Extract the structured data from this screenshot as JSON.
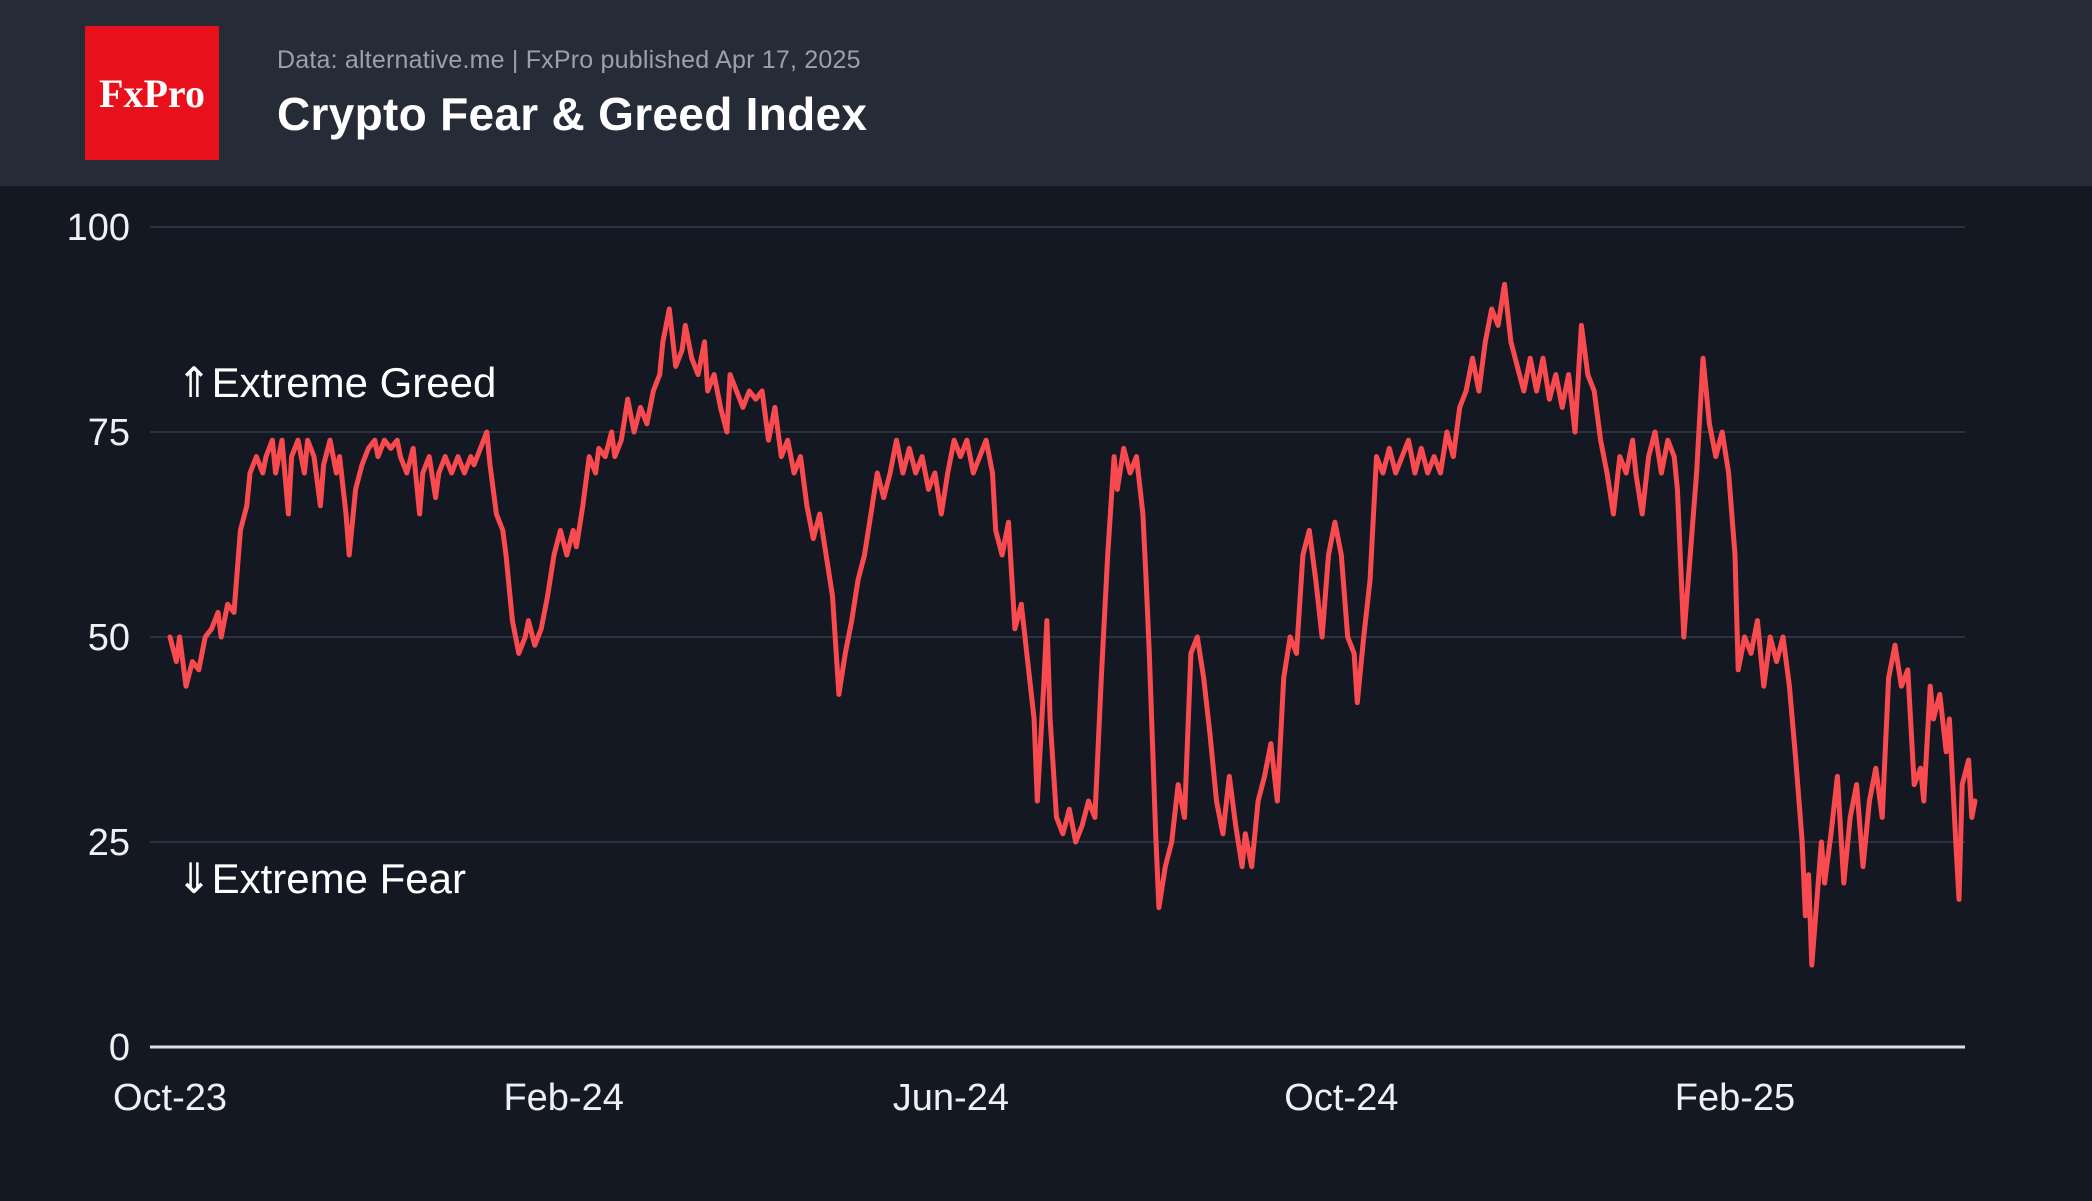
{
  "header": {
    "logo_text": "FxPro",
    "caption": "Data: alternative.me | FxPro published Apr 17, 2025",
    "title": "Crypto Fear & Greed Index"
  },
  "colors": {
    "page_bg": "#141823",
    "header_bg": "#262b38",
    "logo_bg": "#e8101b",
    "line": "#f94b4f",
    "grid": "#343a46",
    "axis": "#dcdee2",
    "tick_text": "#eef0f4",
    "annotation_text": "#ffffff",
    "caption_text": "#9aa1ad"
  },
  "chart_data": {
    "type": "line",
    "title": "Crypto Fear & Greed Index",
    "xlabel": "",
    "ylabel": "",
    "ylim": [
      0,
      100
    ],
    "y_ticks": [
      0,
      25,
      50,
      75,
      100
    ],
    "grid": "horizontal",
    "legend_position": "none",
    "total_days": 564,
    "x_ticks": [
      {
        "label": "Oct-23",
        "day": 0
      },
      {
        "label": "Feb-24",
        "day": 123
      },
      {
        "label": "Jun-24",
        "day": 244
      },
      {
        "label": "Oct-24",
        "day": 366
      },
      {
        "label": "Feb-25",
        "day": 489
      }
    ],
    "annotations": [
      {
        "id": "extreme-greed",
        "arrow": "⇑",
        "text": "Extreme Greed",
        "day": 2,
        "value": 81
      },
      {
        "id": "extreme-fear",
        "arrow": "⇓",
        "text": "Extreme Fear",
        "day": 2,
        "value": 20.5
      }
    ],
    "series": [
      {
        "name": "Crypto Fear & Greed Index (daily)",
        "points": [
          [
            0,
            50
          ],
          [
            2,
            47
          ],
          [
            3,
            50
          ],
          [
            5,
            44
          ],
          [
            7,
            47
          ],
          [
            9,
            46
          ],
          [
            11,
            50
          ],
          [
            13,
            51
          ],
          [
            15,
            53
          ],
          [
            16,
            50
          ],
          [
            18,
            54
          ],
          [
            20,
            53
          ],
          [
            22,
            63
          ],
          [
            24,
            66
          ],
          [
            25,
            70
          ],
          [
            27,
            72
          ],
          [
            29,
            70
          ],
          [
            30,
            72
          ],
          [
            32,
            74
          ],
          [
            33,
            70
          ],
          [
            35,
            74
          ],
          [
            37,
            65
          ],
          [
            38,
            72
          ],
          [
            40,
            74
          ],
          [
            42,
            70
          ],
          [
            43,
            74
          ],
          [
            45,
            72
          ],
          [
            47,
            66
          ],
          [
            48,
            71
          ],
          [
            50,
            74
          ],
          [
            52,
            70
          ],
          [
            53,
            72
          ],
          [
            55,
            65
          ],
          [
            56,
            60
          ],
          [
            58,
            68
          ],
          [
            60,
            71
          ],
          [
            62,
            73
          ],
          [
            64,
            74
          ],
          [
            65,
            72
          ],
          [
            67,
            74
          ],
          [
            69,
            73
          ],
          [
            71,
            74
          ],
          [
            72,
            72
          ],
          [
            74,
            70
          ],
          [
            76,
            73
          ],
          [
            78,
            65
          ],
          [
            79,
            70
          ],
          [
            81,
            72
          ],
          [
            83,
            67
          ],
          [
            84,
            70
          ],
          [
            86,
            72
          ],
          [
            88,
            70
          ],
          [
            90,
            72
          ],
          [
            92,
            70
          ],
          [
            94,
            72
          ],
          [
            95,
            71
          ],
          [
            97,
            73
          ],
          [
            99,
            75
          ],
          [
            100,
            71
          ],
          [
            102,
            65
          ],
          [
            104,
            63
          ],
          [
            105,
            60
          ],
          [
            107,
            52
          ],
          [
            109,
            48
          ],
          [
            111,
            50
          ],
          [
            112,
            52
          ],
          [
            114,
            49
          ],
          [
            116,
            51
          ],
          [
            118,
            55
          ],
          [
            120,
            60
          ],
          [
            122,
            63
          ],
          [
            124,
            60
          ],
          [
            126,
            63
          ],
          [
            127,
            61
          ],
          [
            129,
            66
          ],
          [
            131,
            72
          ],
          [
            133,
            70
          ],
          [
            134,
            73
          ],
          [
            136,
            72
          ],
          [
            138,
            75
          ],
          [
            139,
            72
          ],
          [
            141,
            74
          ],
          [
            143,
            79
          ],
          [
            145,
            75
          ],
          [
            147,
            78
          ],
          [
            149,
            76
          ],
          [
            151,
            80
          ],
          [
            153,
            82
          ],
          [
            154,
            86
          ],
          [
            156,
            90
          ],
          [
            158,
            83
          ],
          [
            160,
            85
          ],
          [
            161,
            88
          ],
          [
            163,
            84
          ],
          [
            165,
            82
          ],
          [
            167,
            86
          ],
          [
            168,
            80
          ],
          [
            170,
            82
          ],
          [
            172,
            78
          ],
          [
            174,
            75
          ],
          [
            175,
            82
          ],
          [
            177,
            80
          ],
          [
            179,
            78
          ],
          [
            181,
            80
          ],
          [
            183,
            79
          ],
          [
            185,
            80
          ],
          [
            187,
            74
          ],
          [
            189,
            78
          ],
          [
            191,
            72
          ],
          [
            193,
            74
          ],
          [
            195,
            70
          ],
          [
            197,
            72
          ],
          [
            199,
            66
          ],
          [
            201,
            62
          ],
          [
            203,
            65
          ],
          [
            205,
            60
          ],
          [
            207,
            55
          ],
          [
            209,
            43
          ],
          [
            211,
            48
          ],
          [
            213,
            52
          ],
          [
            215,
            57
          ],
          [
            217,
            60
          ],
          [
            219,
            65
          ],
          [
            221,
            70
          ],
          [
            223,
            67
          ],
          [
            225,
            70
          ],
          [
            227,
            74
          ],
          [
            229,
            70
          ],
          [
            231,
            73
          ],
          [
            233,
            70
          ],
          [
            235,
            72
          ],
          [
            237,
            68
          ],
          [
            239,
            70
          ],
          [
            241,
            65
          ],
          [
            243,
            70
          ],
          [
            245,
            74
          ],
          [
            247,
            72
          ],
          [
            249,
            74
          ],
          [
            251,
            70
          ],
          [
            253,
            72
          ],
          [
            255,
            74
          ],
          [
            257,
            70
          ],
          [
            258,
            63
          ],
          [
            260,
            60
          ],
          [
            262,
            64
          ],
          [
            264,
            51
          ],
          [
            266,
            54
          ],
          [
            268,
            47
          ],
          [
            270,
            40
          ],
          [
            271,
            30
          ],
          [
            273,
            44
          ],
          [
            274,
            52
          ],
          [
            275,
            40
          ],
          [
            277,
            28
          ],
          [
            279,
            26
          ],
          [
            281,
            29
          ],
          [
            283,
            25
          ],
          [
            285,
            27
          ],
          [
            287,
            30
          ],
          [
            289,
            28
          ],
          [
            291,
            45
          ],
          [
            293,
            60
          ],
          [
            295,
            72
          ],
          [
            296,
            68
          ],
          [
            298,
            73
          ],
          [
            300,
            70
          ],
          [
            302,
            72
          ],
          [
            304,
            65
          ],
          [
            305,
            57
          ],
          [
            306,
            48
          ],
          [
            307,
            37
          ],
          [
            308,
            26
          ],
          [
            309,
            17
          ],
          [
            311,
            22
          ],
          [
            313,
            25
          ],
          [
            315,
            32
          ],
          [
            317,
            28
          ],
          [
            319,
            48
          ],
          [
            321,
            50
          ],
          [
            323,
            45
          ],
          [
            325,
            38
          ],
          [
            327,
            30
          ],
          [
            329,
            26
          ],
          [
            331,
            33
          ],
          [
            333,
            27
          ],
          [
            335,
            22
          ],
          [
            336,
            26
          ],
          [
            338,
            22
          ],
          [
            340,
            30
          ],
          [
            342,
            33
          ],
          [
            344,
            37
          ],
          [
            346,
            30
          ],
          [
            348,
            45
          ],
          [
            350,
            50
          ],
          [
            352,
            48
          ],
          [
            354,
            60
          ],
          [
            356,
            63
          ],
          [
            358,
            57
          ],
          [
            360,
            50
          ],
          [
            362,
            60
          ],
          [
            364,
            64
          ],
          [
            366,
            60
          ],
          [
            368,
            50
          ],
          [
            370,
            48
          ],
          [
            371,
            42
          ],
          [
            373,
            50
          ],
          [
            375,
            57
          ],
          [
            377,
            72
          ],
          [
            379,
            70
          ],
          [
            381,
            73
          ],
          [
            383,
            70
          ],
          [
            385,
            72
          ],
          [
            387,
            74
          ],
          [
            389,
            70
          ],
          [
            391,
            73
          ],
          [
            393,
            70
          ],
          [
            395,
            72
          ],
          [
            397,
            70
          ],
          [
            399,
            75
          ],
          [
            401,
            72
          ],
          [
            403,
            78
          ],
          [
            405,
            80
          ],
          [
            407,
            84
          ],
          [
            409,
            80
          ],
          [
            411,
            86
          ],
          [
            413,
            90
          ],
          [
            415,
            88
          ],
          [
            417,
            93
          ],
          [
            419,
            86
          ],
          [
            421,
            83
          ],
          [
            423,
            80
          ],
          [
            425,
            84
          ],
          [
            427,
            80
          ],
          [
            429,
            84
          ],
          [
            431,
            79
          ],
          [
            433,
            82
          ],
          [
            435,
            78
          ],
          [
            437,
            82
          ],
          [
            439,
            75
          ],
          [
            441,
            88
          ],
          [
            443,
            82
          ],
          [
            445,
            80
          ],
          [
            447,
            74
          ],
          [
            449,
            70
          ],
          [
            451,
            65
          ],
          [
            453,
            72
          ],
          [
            455,
            70
          ],
          [
            457,
            74
          ],
          [
            458,
            70
          ],
          [
            460,
            65
          ],
          [
            462,
            72
          ],
          [
            464,
            75
          ],
          [
            466,
            70
          ],
          [
            468,
            74
          ],
          [
            470,
            72
          ],
          [
            471,
            68
          ],
          [
            473,
            50
          ],
          [
            475,
            60
          ],
          [
            477,
            70
          ],
          [
            479,
            84
          ],
          [
            481,
            76
          ],
          [
            483,
            72
          ],
          [
            485,
            75
          ],
          [
            487,
            70
          ],
          [
            489,
            60
          ],
          [
            490,
            46
          ],
          [
            492,
            50
          ],
          [
            494,
            48
          ],
          [
            496,
            52
          ],
          [
            498,
            44
          ],
          [
            500,
            50
          ],
          [
            502,
            47
          ],
          [
            504,
            50
          ],
          [
            506,
            44
          ],
          [
            508,
            35
          ],
          [
            510,
            25
          ],
          [
            511,
            16
          ],
          [
            512,
            21
          ],
          [
            513,
            10
          ],
          [
            515,
            20
          ],
          [
            516,
            25
          ],
          [
            517,
            20
          ],
          [
            519,
            26
          ],
          [
            521,
            33
          ],
          [
            523,
            20
          ],
          [
            525,
            28
          ],
          [
            527,
            32
          ],
          [
            529,
            22
          ],
          [
            531,
            30
          ],
          [
            533,
            34
          ],
          [
            535,
            28
          ],
          [
            537,
            45
          ],
          [
            539,
            49
          ],
          [
            541,
            44
          ],
          [
            543,
            46
          ],
          [
            545,
            32
          ],
          [
            547,
            34
          ],
          [
            548,
            30
          ],
          [
            550,
            44
          ],
          [
            551,
            40
          ],
          [
            553,
            43
          ],
          [
            555,
            36
          ],
          [
            556,
            40
          ],
          [
            558,
            25
          ],
          [
            559,
            18
          ],
          [
            560,
            32
          ],
          [
            562,
            35
          ],
          [
            563,
            28
          ],
          [
            564,
            30
          ]
        ]
      }
    ]
  }
}
